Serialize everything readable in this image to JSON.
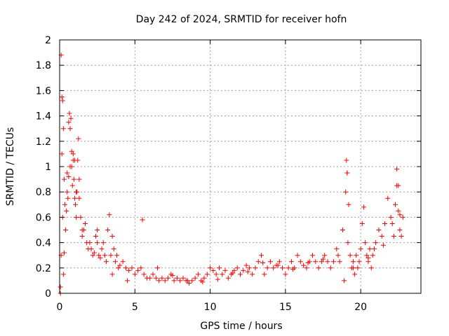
{
  "chart_data": {
    "type": "scatter",
    "title": "Day 242 of 2024, SRMTID for receiver hofn",
    "xlabel": "GPS time / hours",
    "ylabel": "SRMTID / TECUs",
    "xlim": [
      0,
      24
    ],
    "ylim": [
      0,
      2
    ],
    "xticks": [
      0,
      5,
      10,
      15,
      20
    ],
    "xtick_labels": [
      "0",
      "5",
      "10",
      "15",
      "20"
    ],
    "yticks": [
      0,
      0.2,
      0.4,
      0.6,
      0.8,
      1,
      1.2,
      1.4,
      1.6,
      1.8,
      2
    ],
    "ytick_labels": [
      "0",
      "0.2",
      "0.4",
      "0.6",
      "0.8",
      "1",
      "1.2",
      "1.4",
      "1.6",
      "1.8",
      "2"
    ],
    "grid": true,
    "marker": "+",
    "color": "#ff0000",
    "series": [
      {
        "name": "SRMTID",
        "x": [
          0.05,
          0.1,
          0.1,
          0.15,
          0.2,
          0.2,
          0.25,
          0.3,
          0.35,
          0.4,
          0.45,
          0.5,
          0.55,
          0.6,
          0.65,
          0.7,
          0.75,
          0.8,
          0.85,
          0.9,
          0.95,
          1.0,
          1.05,
          1.1,
          1.15,
          1.2,
          1.25,
          1.3,
          1.4,
          1.5,
          1.6,
          1.7,
          1.8,
          1.9,
          2.0,
          2.1,
          2.2,
          2.3,
          2.4,
          2.5,
          2.6,
          2.7,
          2.8,
          2.9,
          3.0,
          3.1,
          3.2,
          3.3,
          3.4,
          3.5,
          3.6,
          3.7,
          3.8,
          3.9,
          4.0,
          4.2,
          4.4,
          4.6,
          4.8,
          5.0,
          5.2,
          5.4,
          5.6,
          5.8,
          6.0,
          6.2,
          6.4,
          6.6,
          6.8,
          7.0,
          7.2,
          7.4,
          7.6,
          7.8,
          8.0,
          8.2,
          8.4,
          8.6,
          8.8,
          9.0,
          9.2,
          9.4,
          9.6,
          9.8,
          10.0,
          10.2,
          10.4,
          10.6,
          10.8,
          11.0,
          11.2,
          11.4,
          11.6,
          11.8,
          12.0,
          12.2,
          12.4,
          12.6,
          12.8,
          13.0,
          13.2,
          13.4,
          13.6,
          13.8,
          14.0,
          14.2,
          14.4,
          14.6,
          14.8,
          15.0,
          15.2,
          15.4,
          15.6,
          15.8,
          16.0,
          16.2,
          16.4,
          16.6,
          16.8,
          17.0,
          17.2,
          17.4,
          17.6,
          17.8,
          18.0,
          18.2,
          18.4,
          18.6,
          18.8,
          19.0,
          19.05,
          19.1,
          19.15,
          19.2,
          19.3,
          19.4,
          19.5,
          19.6,
          19.7,
          19.8,
          19.9,
          20.0,
          20.1,
          20.2,
          20.3,
          20.4,
          20.5,
          20.6,
          20.7,
          20.8,
          20.9,
          21.0,
          21.2,
          21.4,
          21.6,
          21.8,
          22.0,
          22.1,
          22.2,
          22.3,
          22.4,
          22.5,
          22.6,
          22.7,
          22.8,
          0.15,
          0.3,
          0.5,
          0.7,
          0.9,
          1.1,
          1.3,
          1.5,
          2.5,
          3.5,
          4.5,
          18.9,
          19.1,
          22.4,
          22.5,
          22.6,
          1.0,
          0.8,
          0.6,
          5.5,
          6.5,
          7.5,
          8.5,
          9.5,
          10.5,
          11.5,
          12.5,
          13.5,
          14.5,
          15.5,
          16.5,
          17.5,
          18.5,
          19.5,
          20.5,
          21.5,
          0.05,
          0.25
        ],
        "y": [
          0.05,
          1.88,
          0.3,
          1.55,
          1.52,
          0.6,
          1.3,
          0.9,
          0.7,
          0.5,
          0.65,
          0.8,
          0.75,
          1.35,
          1.42,
          1.3,
          1.38,
          1.0,
          0.85,
          1.1,
          0.9,
          1.05,
          0.7,
          0.6,
          0.8,
          1.05,
          1.22,
          0.75,
          0.6,
          0.45,
          0.5,
          0.55,
          0.4,
          0.35,
          0.4,
          0.35,
          0.3,
          0.32,
          0.45,
          0.5,
          0.3,
          0.28,
          0.35,
          0.4,
          0.3,
          0.25,
          0.5,
          0.62,
          0.3,
          0.45,
          0.35,
          0.25,
          0.3,
          0.2,
          0.22,
          0.25,
          0.2,
          0.18,
          0.2,
          0.15,
          0.18,
          0.2,
          0.15,
          0.12,
          0.12,
          0.15,
          0.12,
          0.1,
          0.12,
          0.1,
          0.12,
          0.15,
          0.1,
          0.12,
          0.1,
          0.12,
          0.1,
          0.08,
          0.1,
          0.12,
          0.15,
          0.1,
          0.12,
          0.15,
          0.2,
          0.18,
          0.15,
          0.2,
          0.15,
          0.18,
          0.12,
          0.15,
          0.18,
          0.2,
          0.15,
          0.18,
          0.22,
          0.2,
          0.15,
          0.2,
          0.25,
          0.3,
          0.15,
          0.2,
          0.25,
          0.2,
          0.22,
          0.25,
          0.2,
          0.15,
          0.2,
          0.25,
          0.2,
          0.3,
          0.25,
          0.22,
          0.2,
          0.25,
          0.3,
          0.25,
          0.2,
          0.25,
          0.3,
          0.25,
          0.2,
          0.25,
          0.35,
          0.25,
          0.5,
          0.8,
          1.05,
          0.95,
          0.4,
          0.7,
          0.3,
          0.2,
          0.25,
          0.15,
          0.3,
          0.2,
          0.25,
          0.35,
          0.55,
          0.68,
          0.4,
          0.3,
          0.25,
          0.35,
          0.2,
          0.3,
          0.35,
          0.4,
          0.5,
          0.45,
          0.55,
          0.75,
          0.6,
          0.55,
          0.45,
          0.7,
          0.85,
          0.65,
          0.5,
          0.45,
          0.6,
          1.1,
          0.32,
          0.95,
          1.0,
          1.05,
          0.8,
          0.9,
          0.5,
          0.4,
          0.15,
          0.1,
          0.1,
          0.95,
          0.98,
          0.85,
          0.62,
          0.75,
          1.12,
          0.92,
          0.58,
          0.2,
          0.14,
          0.1,
          0.09,
          0.11,
          0.16,
          0.17,
          0.24,
          0.22,
          0.19,
          0.24,
          0.27,
          0.3,
          0.2,
          0.28,
          0.38,
          0.0,
          0.15
        ]
      }
    ]
  }
}
